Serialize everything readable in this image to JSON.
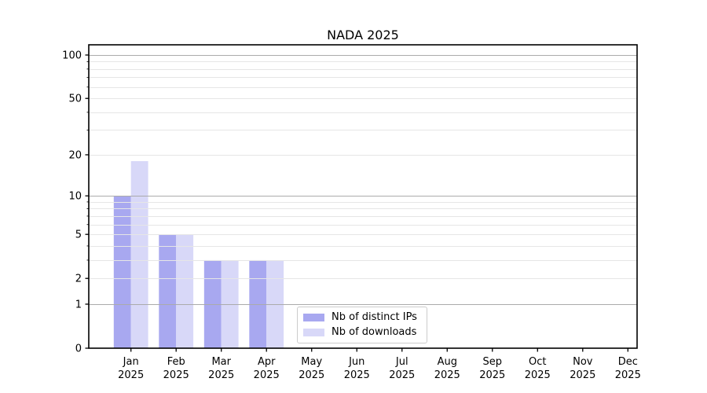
{
  "chart_data": {
    "type": "bar",
    "title": "NADA 2025",
    "categories": [
      {
        "month": "Jan",
        "year": "2025"
      },
      {
        "month": "Feb",
        "year": "2025"
      },
      {
        "month": "Mar",
        "year": "2025"
      },
      {
        "month": "Apr",
        "year": "2025"
      },
      {
        "month": "May",
        "year": "2025"
      },
      {
        "month": "Jun",
        "year": "2025"
      },
      {
        "month": "Jul",
        "year": "2025"
      },
      {
        "month": "Aug",
        "year": "2025"
      },
      {
        "month": "Sep",
        "year": "2025"
      },
      {
        "month": "Oct",
        "year": "2025"
      },
      {
        "month": "Nov",
        "year": "2025"
      },
      {
        "month": "Dec",
        "year": "2025"
      }
    ],
    "series": [
      {
        "name": "Nb of distinct IPs",
        "color": "#a8a8f0",
        "values": [
          10,
          5,
          3,
          3,
          0,
          0,
          0,
          0,
          0,
          0,
          0,
          0
        ]
      },
      {
        "name": "Nb of downloads",
        "color": "#d8d8f8",
        "values": [
          18,
          5,
          3,
          3,
          0,
          0,
          0,
          0,
          0,
          0,
          0,
          0
        ]
      }
    ],
    "y_axis": {
      "scale": "log1p",
      "tick_labels": [
        "0",
        "1",
        "2",
        "5",
        "10",
        "20",
        "50",
        "100"
      ],
      "tick_values": [
        0,
        1,
        2,
        5,
        10,
        20,
        50,
        100
      ],
      "major_gridlines": [
        1,
        10,
        100
      ],
      "minor_gridlines": [
        2,
        3,
        4,
        5,
        6,
        7,
        8,
        9,
        20,
        30,
        40,
        50,
        60,
        70,
        80,
        90
      ]
    },
    "legend": {
      "position": "lower center"
    },
    "grid": true,
    "colors": {
      "major_grid": "#ababab",
      "minor_grid": "#e6e6e6",
      "spine": "#000000",
      "background": "#ffffff",
      "text": "#000000"
    }
  }
}
